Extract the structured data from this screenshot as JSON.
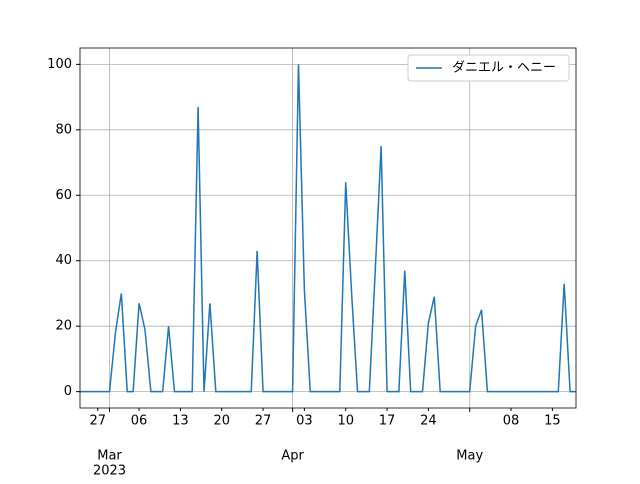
{
  "chart_data": {
    "type": "line",
    "x": [
      "2023-02-24",
      "2023-02-25",
      "2023-02-26",
      "2023-02-27",
      "2023-02-28",
      "2023-03-01",
      "2023-03-02",
      "2023-03-03",
      "2023-03-04",
      "2023-03-05",
      "2023-03-06",
      "2023-03-07",
      "2023-03-08",
      "2023-03-09",
      "2023-03-10",
      "2023-03-11",
      "2023-03-12",
      "2023-03-13",
      "2023-03-14",
      "2023-03-15",
      "2023-03-16",
      "2023-03-17",
      "2023-03-18",
      "2023-03-19",
      "2023-03-20",
      "2023-03-21",
      "2023-03-22",
      "2023-03-23",
      "2023-03-24",
      "2023-03-25",
      "2023-03-26",
      "2023-03-27",
      "2023-03-28",
      "2023-03-29",
      "2023-03-30",
      "2023-03-31",
      "2023-04-01",
      "2023-04-02",
      "2023-04-03",
      "2023-04-04",
      "2023-04-05",
      "2023-04-06",
      "2023-04-07",
      "2023-04-08",
      "2023-04-09",
      "2023-04-10",
      "2023-04-11",
      "2023-04-12",
      "2023-04-13",
      "2023-04-14",
      "2023-04-15",
      "2023-04-16",
      "2023-04-17",
      "2023-04-18",
      "2023-04-19",
      "2023-04-20",
      "2023-04-21",
      "2023-04-22",
      "2023-04-23",
      "2023-04-24",
      "2023-04-25",
      "2023-04-26",
      "2023-04-27",
      "2023-04-28",
      "2023-04-29",
      "2023-04-30",
      "2023-05-01",
      "2023-05-02",
      "2023-05-03",
      "2023-05-04",
      "2023-05-05",
      "2023-05-06",
      "2023-05-07",
      "2023-05-08",
      "2023-05-09",
      "2023-05-10",
      "2023-05-11",
      "2023-05-12",
      "2023-05-13",
      "2023-05-14",
      "2023-05-15",
      "2023-05-16",
      "2023-05-17",
      "2023-05-18",
      "2023-05-19"
    ],
    "series": [
      {
        "name": "ダニエル・ヘニー",
        "color": "#1f77b4",
        "values": [
          0,
          0,
          0,
          0,
          0,
          0,
          18,
          30,
          0,
          0,
          27,
          19,
          0,
          0,
          0,
          20,
          0,
          0,
          0,
          0,
          87,
          0,
          27,
          0,
          0,
          0,
          0,
          0,
          0,
          0,
          43,
          0,
          0,
          0,
          0,
          0,
          0,
          100,
          31,
          0,
          0,
          0,
          0,
          0,
          0,
          64,
          30,
          0,
          0,
          0,
          37,
          75,
          0,
          0,
          0,
          37,
          0,
          0,
          0,
          21,
          29,
          0,
          0,
          0,
          0,
          0,
          0,
          20,
          25,
          0,
          0,
          0,
          0,
          0,
          0,
          0,
          0,
          0,
          0,
          0,
          0,
          0,
          33,
          0,
          0
        ]
      }
    ],
    "xlim": [
      "2023-02-24",
      "2023-05-19"
    ],
    "xticks_minor": [
      {
        "value": "2023-02-27",
        "label": "27"
      },
      {
        "value": "2023-03-06",
        "label": "06"
      },
      {
        "value": "2023-03-13",
        "label": "13"
      },
      {
        "value": "2023-03-20",
        "label": "20"
      },
      {
        "value": "2023-03-27",
        "label": "27"
      },
      {
        "value": "2023-04-03",
        "label": "03"
      },
      {
        "value": "2023-04-10",
        "label": "10"
      },
      {
        "value": "2023-04-17",
        "label": "17"
      },
      {
        "value": "2023-04-24",
        "label": "24"
      },
      {
        "value": "2023-05-08",
        "label": "08"
      },
      {
        "value": "2023-05-15",
        "label": "15"
      }
    ],
    "xticks": [
      {
        "value": "2023-03-01",
        "label": "Mar"
      },
      {
        "value": "2023-04-01",
        "label": "Apr"
      },
      {
        "value": "2023-05-01",
        "label": "May"
      }
    ],
    "x_year_label": "2023",
    "ylim": [
      -5,
      105
    ],
    "yticks": [
      0,
      20,
      40,
      60,
      80,
      100
    ],
    "grid": true,
    "legend": "upper right"
  }
}
